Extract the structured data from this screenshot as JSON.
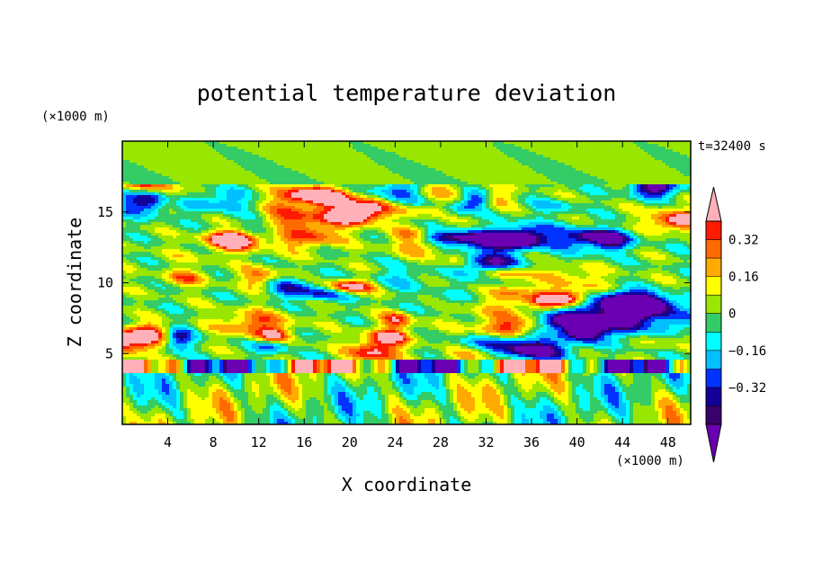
{
  "chart_data": {
    "type": "heatmap",
    "title": "potential temperature deviation",
    "xlabel": "X coordinate",
    "ylabel": "Z coordinate",
    "x_unit": "(×1000 m)",
    "y_unit": "(×1000 m)",
    "time_label": "t=32400 s",
    "xlim": [
      0,
      50
    ],
    "ylim": [
      0,
      20
    ],
    "xticks": [
      4,
      8,
      12,
      16,
      20,
      24,
      28,
      32,
      36,
      40,
      44,
      48
    ],
    "yticks": [
      5,
      10,
      15
    ],
    "colorbar": {
      "levels": [
        -0.44,
        -0.4,
        -0.32,
        -0.24,
        -0.16,
        -0.08,
        0,
        0.08,
        0.16,
        0.24,
        0.32,
        0.4
      ],
      "tick_values": [
        0.32,
        0.16,
        0,
        -0.16,
        -0.32
      ],
      "tick_labels": [
        "0.32",
        "0.16",
        "0",
        "−0.16",
        "−0.32"
      ],
      "colors": [
        "#6b00b3",
        "#3a006b",
        "#13009a",
        "#0033ff",
        "#00c0ff",
        "#00ffff",
        "#33cc66",
        "#99e600",
        "#ffff00",
        "#ffaa00",
        "#ff6a00",
        "#ff1a00",
        "#ffb0b8"
      ]
    },
    "field_description": "Green near-zero background above z≈17 km; alternating warm (yellow/orange/red/pink) and cold (cyan/blue/purple) cells between z≈4 and z≈17 km; strong cold and warm anomalies at z≈4 km; vertical plume structures below z≈4 km."
  }
}
